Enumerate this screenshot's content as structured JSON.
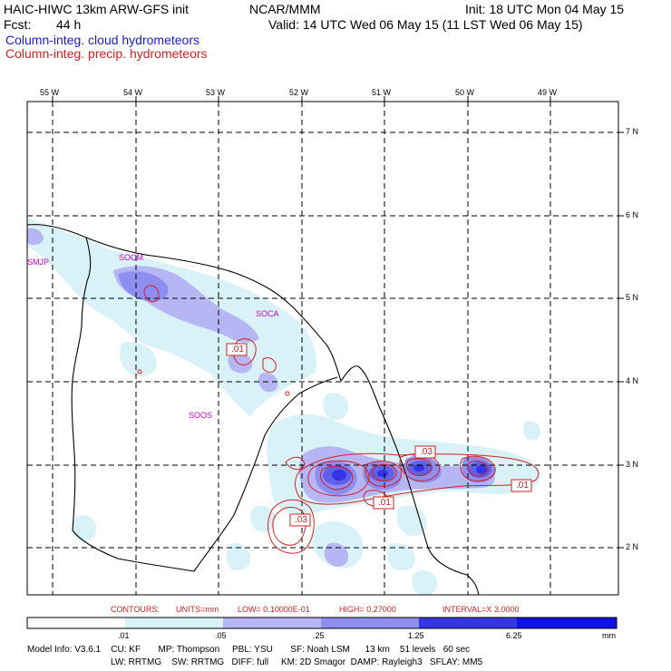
{
  "header": {
    "title_left": "HAIC-HIWC 13km ARW-GFS init",
    "org": "NCAR/MMM",
    "init": "Init: 18 UTC Mon 04 May 15",
    "fcst_label": "Fcst:",
    "fcst_value": "44 h",
    "valid": "Valid: 14 UTC Wed 06 May 15 (11 LST Wed 06 May 15)",
    "field_cloud": "Column-integ. cloud hydrometeors",
    "field_precip": "Column-integ. precip. hydrometeors"
  },
  "colors": {
    "cloud_title": "#1b1bd6",
    "precip_title": "#d42020",
    "fill_1": "#d8f2f8",
    "fill_2": "#b6b6f4",
    "fill_3": "#8e8ef0",
    "fill_4": "#6060e8",
    "fill_5": "#3434e6",
    "fill_6": "#1010e8",
    "contour": "#d42020",
    "station": "#cc00cc"
  },
  "map": {
    "lon_labels": [
      "55 W",
      "54 W",
      "53 W",
      "52 W",
      "51 W",
      "50 W",
      "49 W"
    ],
    "lat_labels": [
      "7 N",
      "6 N",
      "5 N",
      "4 N",
      "3 N",
      "2 N"
    ],
    "stations": [
      "SMJP",
      "SOCM",
      "SOCA",
      "SOOS"
    ],
    "contour_labels": [
      ".01",
      ".03",
      ".01",
      ".03",
      ".01"
    ]
  },
  "contour_info": {
    "contours": "CONTOURS:",
    "units": "UNITS=mm",
    "low": "LOW= 0.10000E-01",
    "high": "HIGH= 0.27000",
    "interval": "INTERVAL=X  3.0000"
  },
  "colorbar": {
    "labels": [
      ".01",
      ".05",
      ".25",
      "1.25",
      "6.25"
    ],
    "unit": "mm"
  },
  "model_info": {
    "line1": "Model Info: V3.6.1    CU: KF       MP: Thompson     PBL: YSU       SF: Noah LSM      13 km    51 levels   60 sec",
    "line2": "LW: RRTMG    SW: RRTMG   DIFF: full     KM: 2D Smagor  DAMP: Rayleigh3   SFLAY: MM5"
  }
}
